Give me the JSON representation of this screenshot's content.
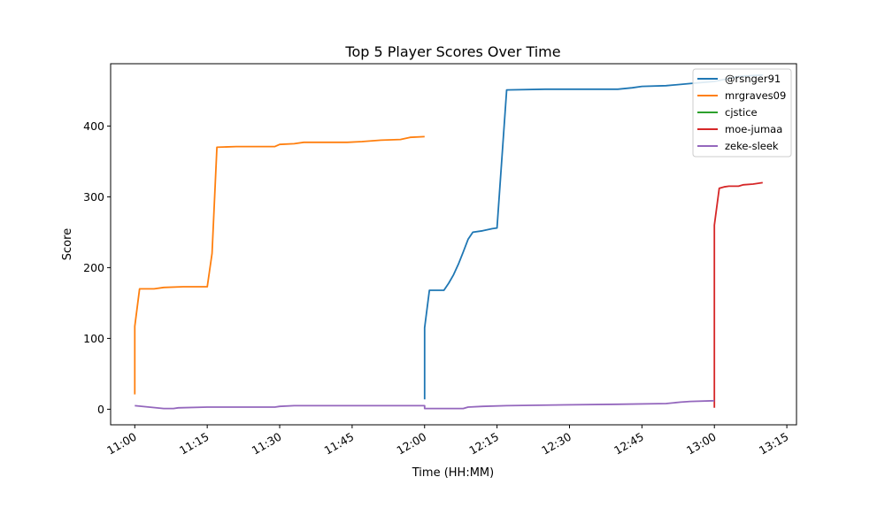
{
  "chart_data": {
    "type": "line",
    "title": "Top 5 Player Scores Over Time",
    "xlabel": "Time (HH:MM)",
    "ylabel": "Score",
    "xlim": [
      "10:55",
      "13:17"
    ],
    "ylim": [
      -22,
      488
    ],
    "x_ticks": [
      "11:00",
      "11:15",
      "11:30",
      "11:45",
      "12:00",
      "12:15",
      "12:30",
      "12:45",
      "13:00",
      "13:15"
    ],
    "y_ticks": [
      0,
      100,
      200,
      300,
      400
    ],
    "grid": false,
    "legend_position": "top-right",
    "series": [
      {
        "name": "@rsnger91",
        "color": "#1f77b4",
        "points": [
          [
            "12:00",
            14
          ],
          [
            "12:00",
            113
          ],
          [
            "12:00",
            115
          ],
          [
            "12:01",
            168
          ],
          [
            "12:04",
            168
          ],
          [
            "12:05",
            178
          ],
          [
            "12:06",
            190
          ],
          [
            "12:07",
            205
          ],
          [
            "12:08",
            222
          ],
          [
            "12:09",
            240
          ],
          [
            "12:10",
            250
          ],
          [
            "12:12",
            252
          ],
          [
            "12:14",
            255
          ],
          [
            "12:15",
            256
          ],
          [
            "12:17",
            451
          ],
          [
            "12:25",
            452
          ],
          [
            "12:40",
            452
          ],
          [
            "12:43",
            454
          ],
          [
            "12:45",
            456
          ],
          [
            "12:50",
            457
          ],
          [
            "12:55",
            460
          ],
          [
            "13:00",
            463
          ],
          [
            "13:03",
            467
          ],
          [
            "13:05",
            470
          ],
          [
            "13:10",
            472
          ]
        ]
      },
      {
        "name": "mrgraves09",
        "color": "#ff7f0e",
        "points": [
          [
            "11:00",
            21
          ],
          [
            "11:00",
            115
          ],
          [
            "11:00",
            117
          ],
          [
            "11:01",
            170
          ],
          [
            "11:04",
            170
          ],
          [
            "11:06",
            172
          ],
          [
            "11:10",
            173
          ],
          [
            "11:15",
            173
          ],
          [
            "11:16",
            220
          ],
          [
            "11:17",
            370
          ],
          [
            "11:21",
            371
          ],
          [
            "11:29",
            371
          ],
          [
            "11:30",
            374
          ],
          [
            "11:33",
            375
          ],
          [
            "11:35",
            377
          ],
          [
            "11:44",
            377
          ],
          [
            "11:47",
            378
          ],
          [
            "11:51",
            380
          ],
          [
            "11:55",
            381
          ],
          [
            "11:57",
            384
          ],
          [
            "12:00",
            385
          ]
        ]
      },
      {
        "name": "cjstice",
        "color": "#2ca02c",
        "points": []
      },
      {
        "name": "moe-jumaa",
        "color": "#d62728",
        "points": [
          [
            "13:00",
            2
          ],
          [
            "13:00",
            258
          ],
          [
            "13:00",
            260
          ],
          [
            "13:01",
            312
          ],
          [
            "13:02",
            314
          ],
          [
            "13:03",
            315
          ],
          [
            "13:05",
            315
          ],
          [
            "13:06",
            317
          ],
          [
            "13:08",
            318
          ],
          [
            "13:10",
            320
          ]
        ]
      },
      {
        "name": "zeke-sleek",
        "color": "#9467bd",
        "points": [
          [
            "11:00",
            5
          ],
          [
            "11:06",
            1
          ],
          [
            "11:08",
            1
          ],
          [
            "11:09",
            2
          ],
          [
            "11:15",
            3
          ],
          [
            "11:29",
            3
          ],
          [
            "11:30",
            4
          ],
          [
            "11:33",
            5
          ],
          [
            "12:00",
            5
          ],
          [
            "12:00",
            1
          ],
          [
            "12:08",
            1
          ],
          [
            "12:09",
            3
          ],
          [
            "12:12",
            4
          ],
          [
            "12:17",
            5
          ],
          [
            "12:27",
            6
          ],
          [
            "12:40",
            7
          ],
          [
            "12:50",
            8
          ],
          [
            "12:53",
            10
          ],
          [
            "12:55",
            11
          ],
          [
            "13:00",
            12
          ]
        ]
      }
    ]
  }
}
